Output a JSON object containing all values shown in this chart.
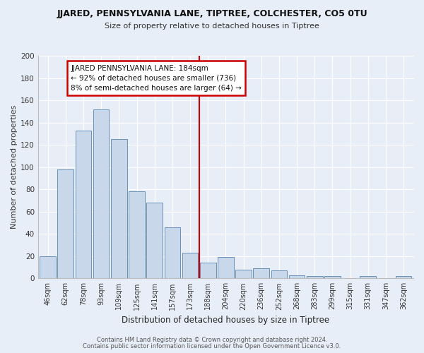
{
  "title1": "JJARED, PENNSYLVANIA LANE, TIPTREE, COLCHESTER, CO5 0TU",
  "title2": "Size of property relative to detached houses in Tiptree",
  "xlabel": "Distribution of detached houses by size in Tiptree",
  "ylabel": "Number of detached properties",
  "categories": [
    "46sqm",
    "62sqm",
    "78sqm",
    "93sqm",
    "109sqm",
    "125sqm",
    "141sqm",
    "157sqm",
    "173sqm",
    "188sqm",
    "204sqm",
    "220sqm",
    "236sqm",
    "252sqm",
    "268sqm",
    "283sqm",
    "299sqm",
    "315sqm",
    "331sqm",
    "347sqm",
    "362sqm"
  ],
  "values": [
    20,
    98,
    133,
    152,
    125,
    78,
    68,
    46,
    23,
    14,
    19,
    8,
    9,
    7,
    3,
    2,
    2,
    0,
    2,
    0,
    2
  ],
  "bar_color": "#c8d8ea",
  "bar_edge_color": "#6890b8",
  "marker_line_color": "#cc0000",
  "annotation_line1": "JJARED PENNSYLVANIA LANE: 184sqm",
  "annotation_line2": "← 92% of detached houses are smaller (736)",
  "annotation_line3": "8% of semi-detached houses are larger (64) →",
  "annotation_box_color": "#cc0000",
  "footer1": "Contains HM Land Registry data © Crown copyright and database right 2024.",
  "footer2": "Contains public sector information licensed under the Open Government Licence v3.0.",
  "ylim": [
    0,
    200
  ],
  "yticks": [
    0,
    20,
    40,
    60,
    80,
    100,
    120,
    140,
    160,
    180,
    200
  ],
  "background_color": "#e8eef8",
  "grid_color": "#ffffff",
  "title1_fontsize": 9,
  "title2_fontsize": 8,
  "ylabel_fontsize": 8,
  "xlabel_fontsize": 8.5,
  "tick_fontsize": 7,
  "footer_fontsize": 6,
  "ann_fontsize": 7.5,
  "marker_bar_index": 9,
  "red_line_x": 8.5
}
